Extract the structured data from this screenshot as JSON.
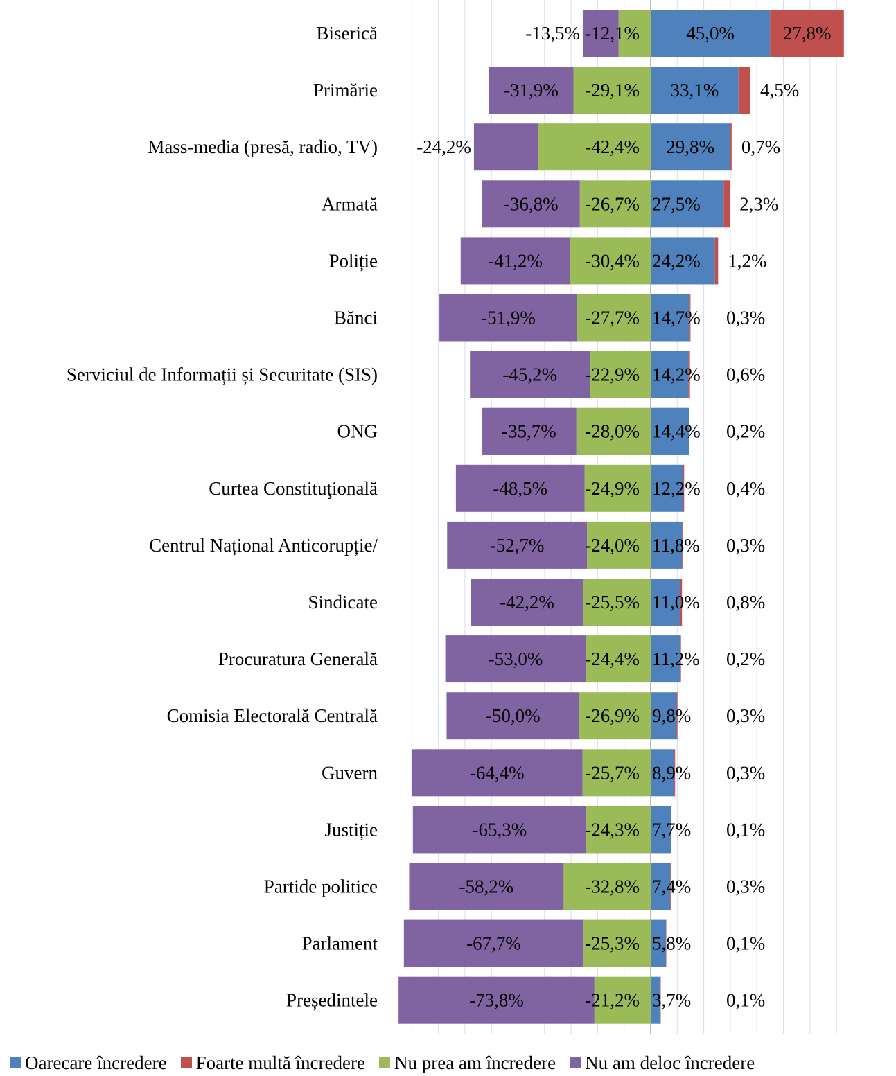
{
  "chart_data": {
    "type": "bar",
    "orientation": "horizontal-diverging-stacked",
    "categories": [
      "Biserică",
      "Primărie",
      "Mass-media (presă, radio, TV)",
      "Armată",
      "Poliție",
      "Bănci",
      "Serviciul  de Informații și Securitate (SIS)",
      "ONG",
      "Curtea Constituţională",
      "Centrul Național Anticorupție/",
      "Sindicate",
      "Procuratura Generală",
      "Comisia Electorală Centrală",
      "Guvern",
      "Justiție",
      "Partide politice",
      "Parlament",
      "Președintele"
    ],
    "series": [
      {
        "name": "Oarecare încredere",
        "color": "#4F81BD",
        "values": [
          45.0,
          33.1,
          29.8,
          27.5,
          24.2,
          14.7,
          14.2,
          14.4,
          12.2,
          11.8,
          11.0,
          11.2,
          9.8,
          8.9,
          7.7,
          7.4,
          5.8,
          3.7
        ],
        "labels": [
          "45,0%",
          "33,1%",
          "29,8%",
          "27,5%",
          "24,2%",
          "14,7%",
          "14,2%",
          "14,4%",
          "12,2%",
          "11,8%",
          "11,0%",
          "11,2%",
          "9,8%",
          "8,9%",
          "7,7%",
          "7,4%",
          "5,8%",
          "3,7%"
        ]
      },
      {
        "name": "Foarte multă încredere",
        "color": "#C0504D",
        "values": [
          27.8,
          4.5,
          0.7,
          2.3,
          1.2,
          0.3,
          0.6,
          0.2,
          0.4,
          0.3,
          0.8,
          0.2,
          0.3,
          0.3,
          0.1,
          0.3,
          0.1,
          0.1
        ],
        "labels": [
          "27,8%",
          "4,5%",
          "0,7%",
          "2,3%",
          "1,2%",
          "0,3%",
          "0,6%",
          "0,2%",
          "0,4%",
          "0,3%",
          "0,8%",
          "0,2%",
          "0,3%",
          "0,3%",
          "0,1%",
          "0,3%",
          "0,1%",
          "0,1%"
        ]
      },
      {
        "name": "Nu prea am încredere",
        "color": "#9BBB59",
        "values": [
          -12.1,
          -29.1,
          -42.4,
          -26.7,
          -30.4,
          -27.7,
          -22.9,
          -28.0,
          -24.9,
          -24.0,
          -25.5,
          -24.4,
          -26.9,
          -25.7,
          -24.3,
          -32.8,
          -25.3,
          -21.2
        ],
        "labels": [
          "-12,1%",
          "-29,1%",
          "-42,4%",
          "-26,7%",
          "-30,4%",
          "-27,7%",
          "-22,9%",
          "-28,0%",
          "-24,9%",
          "-24,0%",
          "-25,5%",
          "-24,4%",
          "-26,9%",
          "-25,7%",
          "-24,3%",
          "-32,8%",
          "-25,3%",
          "-21,2%"
        ]
      },
      {
        "name": "Nu am deloc încredere",
        "color": "#8064A2",
        "values": [
          -13.5,
          -31.9,
          -24.2,
          -36.8,
          -41.2,
          -51.9,
          -45.2,
          -35.7,
          -48.5,
          -52.7,
          -42.2,
          -53.0,
          -50.0,
          -64.4,
          -65.3,
          -58.2,
          -67.7,
          -73.8
        ],
        "labels": [
          "-13,5%",
          "-31,9%",
          "-24,2%",
          "-36,8%",
          "-41,2%",
          "-51,9%",
          "-45,2%",
          "-35,7%",
          "-48,5%",
          "-52,7%",
          "-42,2%",
          "-53,0%",
          "-50,0%",
          "-64,4%",
          "-65,3%",
          "-58,2%",
          "-67,7%",
          "-73,8%"
        ]
      }
    ],
    "xlim": [
      -95,
      85
    ],
    "grid": true,
    "legend": "bottom"
  }
}
